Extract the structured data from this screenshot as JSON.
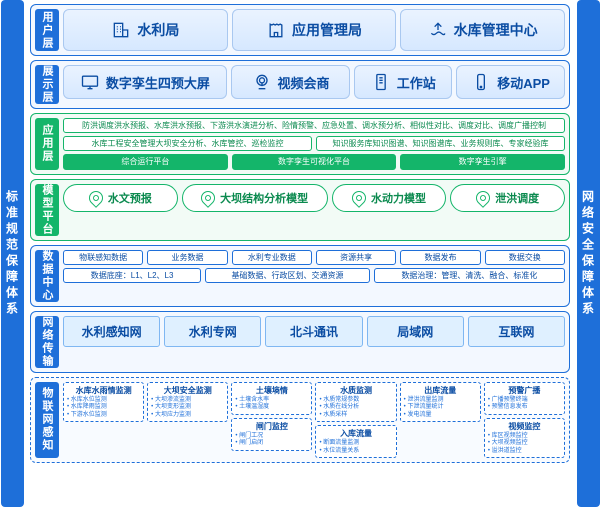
{
  "colors": {
    "blue": "#1e6fd9",
    "blueLight": "#eaf3ff",
    "green": "#14b56a",
    "greenDark": "#0b8a4f",
    "darkblue": "#0b4da3"
  },
  "rails": {
    "left": "标准规范保障体系",
    "right": "网络安全保障体系"
  },
  "user": {
    "label": "用户层",
    "items": [
      "水利局",
      "应用管理局",
      "水库管理中心"
    ]
  },
  "display": {
    "label": "展示层",
    "items": [
      "数字孪生四预大屏",
      "视频会商",
      "工作站",
      "移动APP"
    ]
  },
  "app": {
    "label": "应用层",
    "row1": [
      "防洪调度洪水预报、水库洪水预报、下游洪水演进分析、险情预警、应急处置、调水预分析、相似性对比、调度对比、调度广播控制"
    ],
    "row2": [
      "水库工程安全管理大坝安全分析、水库管控、巡检监控",
      "知识服务库知识图谱、知识图谱库、业务规则库、专家经验库"
    ],
    "row3": [
      "综合运行平台",
      "数字孪生可视化平台",
      "数字孪生引擎"
    ]
  },
  "model": {
    "label": "模型平台",
    "items": [
      "水文预报",
      "大坝结构分析模型",
      "水动力模型",
      "泄洪调度"
    ]
  },
  "data": {
    "label": "数据中心",
    "row1": [
      "物联感知数据",
      "业务数据",
      "水利专业数据",
      "资源共享",
      "数据发布",
      "数据交换"
    ],
    "row2_left": "数据底座：L1、L2、L3",
    "row2_mid": "基础数据、行政区划、交通资源",
    "row2_right": "数据治理：管理、清洗、融合、标准化"
  },
  "net": {
    "label": "网络传输",
    "items": [
      "水利感知网",
      "水利专网",
      "北斗通讯",
      "局域网",
      "互联网"
    ]
  },
  "iot": {
    "label": "物联网感知",
    "cards": [
      {
        "title": "水库水雨情监测",
        "items": [
          "水库水位监测",
          "水库降雨监测",
          "下游水位监测"
        ]
      },
      {
        "title": "大坝安全监测",
        "items": [
          "大坝渗流监测",
          "大坝变形监测",
          "大坝应力监测"
        ]
      },
      {
        "title": "土壤墒情",
        "items": [
          "土壤含水率",
          "土壤温湿度"
        ],
        "sub": {
          "title": "闸门监控",
          "items": [
            "闸门工况",
            "闸门启闭"
          ]
        }
      },
      {
        "title": "水质监测",
        "items": [
          "水质常规参数",
          "水质在线分析",
          "水质采样"
        ],
        "sub": {
          "title": "入库流量",
          "items": [
            "断面流量监测",
            "水位流量关系"
          ]
        }
      },
      {
        "title": "出库流量",
        "items": [
          "泄洪流量监测",
          "下泄流量统计",
          "发电流量"
        ]
      },
      {
        "title": "预警广播",
        "items": [
          "广播预警终端",
          "预警信息发布"
        ],
        "sub": {
          "title": "视频监控",
          "items": [
            "库区视频监控",
            "大坝视频监控",
            "溢洪道监控"
          ]
        }
      }
    ]
  }
}
